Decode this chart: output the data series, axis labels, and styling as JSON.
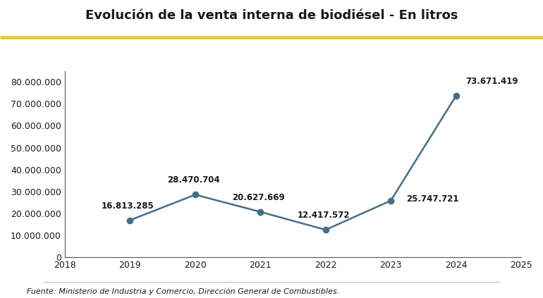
{
  "title": "Evolución de la venta interna de biodiésel - En litros",
  "years": [
    2019,
    2020,
    2021,
    2022,
    2023,
    2024
  ],
  "values": [
    16813285,
    28470704,
    20627669,
    12417572,
    25747721,
    73671419
  ],
  "labels": [
    "16.813.285",
    "28.470.704",
    "20.627.669",
    "12.417.572",
    "25.747.721",
    "73.671.419"
  ],
  "xlim": [
    2018,
    2025
  ],
  "ylim": [
    0,
    85000000
  ],
  "yticks": [
    0,
    10000000,
    20000000,
    30000000,
    40000000,
    50000000,
    60000000,
    70000000,
    80000000
  ],
  "ytick_labels": [
    "0",
    "10.000.000",
    "20.000.000",
    "30.000.000",
    "40.000.000",
    "50.000.000",
    "60.000.000",
    "70.000.000",
    "80.000.000"
  ],
  "xticks": [
    2018,
    2019,
    2020,
    2021,
    2022,
    2023,
    2024,
    2025
  ],
  "line_color": "#456e8a",
  "marker_color": "#456e8a",
  "gold_line_color": "#e8c84a",
  "background_color": "#ffffff",
  "text_color": "#1a1a1a",
  "footnote": "Fuente: Ministerio de Industria y Comercio, Dirección General de Combustibles.",
  "title_fontsize": 13,
  "label_fontsize": 8.5,
  "tick_fontsize": 9,
  "footnote_fontsize": 8
}
